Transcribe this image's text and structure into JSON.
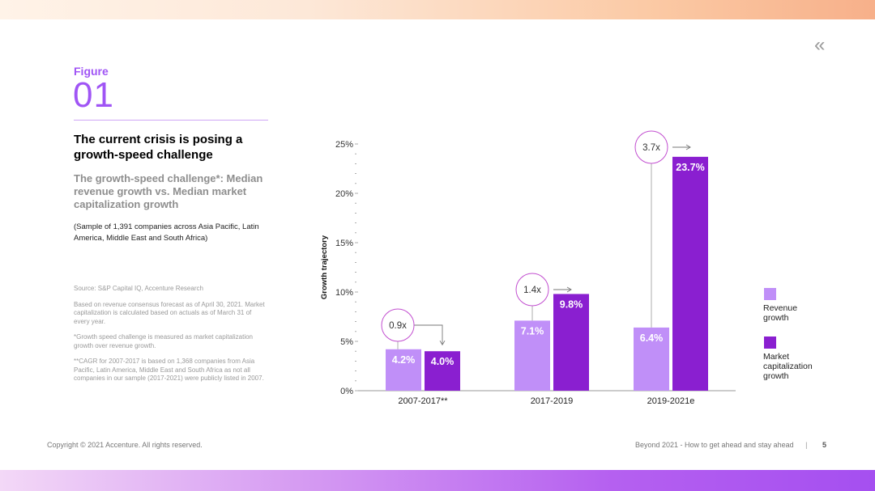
{
  "nav": {
    "back_icon": "«"
  },
  "figure": {
    "label": "Figure",
    "number": "01"
  },
  "title": "The current crisis is posing a growth-speed challenge",
  "subtitle": "The growth-speed challenge*: Median revenue growth vs. Median market capitalization growth",
  "sample_note": "(Sample of 1,391 companies across Asia Pacific, Latin America, Middle East and South Africa)",
  "notes": [
    "Source: S&P Capital IQ, Accenture Research",
    "Based on revenue consensus forecast as of April 30, 2021. Market capitalization is calculated based on actuals as of March 31 of every year.",
    "*Growth speed challenge is measured as market capitalization growth over revenue growth.",
    "**CAGR for 2007-2017 is based on 1,368 companies from Asia Pacific, Latin America, Middle East and South Africa as not all companies in our sample (2017-2021) were publicly listed in 2007."
  ],
  "footer": {
    "copyright": "Copyright © 2021 Accenture. All rights reserved.",
    "doc_title": "Beyond 2021 - How to get ahead and stay ahead",
    "separator": "|",
    "page_number": "5"
  },
  "colors": {
    "revenue": "#c08ff8",
    "market_cap": "#8a1fd0",
    "accent": "#a055f5",
    "ratio_circle": "#c24fd0"
  },
  "chart_data": {
    "type": "bar",
    "ylabel": "Growth trajectory",
    "ylim": [
      0,
      25
    ],
    "y_ticks": [
      "0%",
      "5%",
      "10%",
      "15%",
      "20%",
      "25%"
    ],
    "categories": [
      "2007-2017**",
      "2017-2019",
      "2019-2021e"
    ],
    "series": [
      {
        "name": "Revenue growth",
        "values": [
          4.2,
          7.1,
          6.4
        ],
        "labels": [
          "4.2%",
          "7.1%",
          "6.4%"
        ]
      },
      {
        "name": "Market capitalization growth",
        "values": [
          4.0,
          9.8,
          23.7
        ],
        "labels": [
          "4.0%",
          "9.8%",
          "23.7%"
        ]
      }
    ],
    "ratios": [
      "0.9x",
      "1.4x",
      "3.7x"
    ],
    "legend": [
      {
        "name": "Revenue growth",
        "lines": [
          "Revenue",
          "growth"
        ]
      },
      {
        "name": "Market capitalization growth",
        "lines": [
          "Market",
          "capitalization",
          "growth"
        ]
      }
    ]
  }
}
